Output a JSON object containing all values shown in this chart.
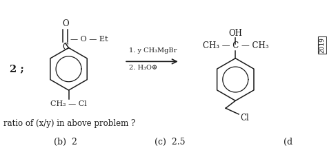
{
  "bg_color": "#ffffff",
  "text_color": "#1a1a1a",
  "fig_width": 4.74,
  "fig_height": 2.18,
  "dpi": 100,
  "label_2": "2 ;",
  "o_double": "O",
  "c_ester": "C",
  "ester_chain": "— O — Et",
  "ch2cl_label": "CH₂ — Cl",
  "oh_label": "OH",
  "ch3_c_ch3": "CH₃ — C — CH₃",
  "cl_label": "Cl",
  "reagent_line1": "1. y CH₃MgBr",
  "reagent_line2": "2. H₃O⊕",
  "question": "ratio of (x/y) in above problem ?",
  "option_b": "(b)  2",
  "option_c": "(c)  2.5",
  "option_d": "(d",
  "year_text": "2019",
  "lbx": 0.21,
  "lby": 0.54,
  "rbx": 0.72,
  "rby": 0.47,
  "hex_r": 0.1,
  "inner_r": 0.062,
  "font_size_main": 8.5,
  "font_size_label": 9.5,
  "font_size_question": 8.5
}
